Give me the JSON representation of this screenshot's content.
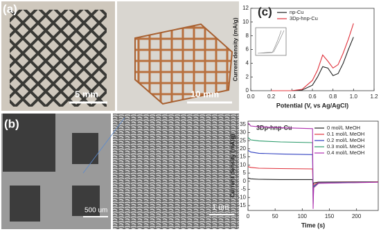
{
  "figure": {
    "panel_a": "(a)",
    "scale_a1": "5 mm",
    "scale_a2": "10 mm",
    "panel_b": "(b)",
    "scale_b1": "500 um",
    "scale_b2": "1 um",
    "panel_c": "(c)"
  },
  "chart_data": [
    {
      "type": "line",
      "legend": "upper left",
      "x_label": "Potential (V, vs Ag/AgCl)",
      "y_label": "Current density (mA/g)",
      "x": [
        0.2,
        0.4,
        0.5,
        0.6,
        0.65,
        0.7,
        0.75,
        0.8,
        0.85,
        0.9,
        0.95,
        1.0
      ],
      "series": [
        {
          "name": "np-Cu",
          "color": "#222222",
          "values": [
            0,
            0,
            0.1,
            0.8,
            2,
            3.5,
            3.3,
            2.2,
            2.5,
            4,
            6,
            7.8
          ]
        },
        {
          "name": "3Dp-hnp-Cu",
          "color": "#e0303a",
          "values": [
            0,
            0,
            0.2,
            1.5,
            3,
            5.2,
            4.3,
            3.3,
            3.8,
            5.5,
            7.5,
            9.8
          ]
        }
      ],
      "xlim": [
        0,
        1.2
      ],
      "ylim": [
        0,
        12
      ],
      "xticks": [
        {
          "value": 0,
          "label": "0.0"
        },
        0.2,
        0.4,
        0.6,
        0.8,
        {
          "value": 1,
          "label": "1.0"
        },
        1.2
      ],
      "yticks": [
        0,
        2,
        4,
        6,
        8,
        10,
        12
      ]
    },
    {
      "type": "line",
      "legend": "upper right",
      "title": "3Dp-hnp-Cu",
      "x_label": "Time (s)",
      "y_label": "Current density (mA/g)",
      "x": [
        0,
        5,
        20,
        60,
        119,
        120,
        121,
        130,
        240
      ],
      "series": [
        {
          "name": "0 mol/L MeOH",
          "color": "#222222",
          "values": [
            2,
            1.5,
            1.2,
            1,
            1,
            -3,
            -1,
            -0.5,
            -0.3
          ]
        },
        {
          "name": "0.1 mol/L MeOH",
          "color": "#e0303a",
          "values": [
            9,
            8.5,
            8,
            7.8,
            7.6,
            -6,
            -2,
            -0.8,
            -0.4
          ]
        },
        {
          "name": "0.2 mol/L MeOH",
          "color": "#3040c0",
          "values": [
            19,
            18,
            17.2,
            16.8,
            16.4,
            -10,
            -3,
            -1,
            -0.5
          ]
        },
        {
          "name": "0.3 mol/L MeOH",
          "color": "#2a9a6a",
          "values": [
            27,
            25.5,
            24.8,
            24.2,
            23.8,
            -14,
            -3.5,
            -1.2,
            -0.5
          ]
        },
        {
          "name": "0.4 mol/L MeOH",
          "color": "#b030b0",
          "values": [
            36,
            34,
            33.5,
            33,
            32.4,
            -17,
            -4,
            -1.3,
            -0.6
          ]
        }
      ],
      "xlim": [
        0,
        240
      ],
      "ylim": [
        -18,
        37
      ],
      "xticks": [
        0,
        50,
        100,
        150,
        200
      ],
      "yticks": [
        -15,
        -10,
        -5,
        0,
        5,
        10,
        15,
        20,
        25,
        30,
        35
      ]
    }
  ]
}
